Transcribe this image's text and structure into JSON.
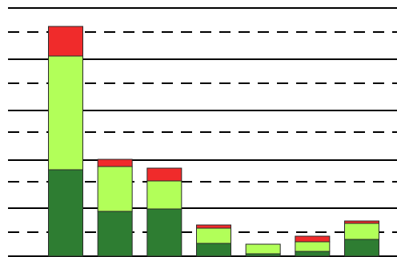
{
  "chart_data": {
    "type": "bar",
    "stacked": true,
    "categories": [
      "",
      "",
      "",
      "",
      "",
      "",
      ""
    ],
    "series": [
      {
        "color": "#2e7d32",
        "values": [
          108,
          56,
          59,
          16,
          3,
          6,
          21
        ]
      },
      {
        "color": "#b2ff59",
        "values": [
          142,
          56,
          35,
          19,
          12,
          12,
          20
        ]
      },
      {
        "color": "#f02b2b",
        "values": [
          37,
          9,
          16,
          4,
          0,
          7,
          3
        ]
      }
    ],
    "ylim": [
      0,
      320
    ],
    "gridlines": {
      "solid": [
        0,
        60,
        120,
        182,
        246,
        310
      ],
      "dashed": [
        30,
        93,
        155,
        216,
        280
      ]
    },
    "grid": true,
    "legend": "none"
  }
}
